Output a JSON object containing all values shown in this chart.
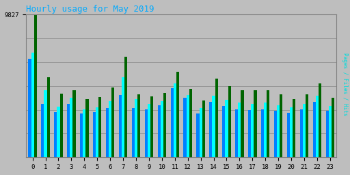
{
  "title": "Hourly usage for May 2019",
  "title_color": "#00AAFF",
  "background_color": "#BEBEBE",
  "plot_background": "#BEBEBE",
  "ymax": 9827,
  "hours": [
    0,
    1,
    2,
    3,
    4,
    5,
    6,
    7,
    8,
    9,
    10,
    11,
    12,
    13,
    14,
    15,
    16,
    17,
    18,
    19,
    20,
    21,
    22,
    23
  ],
  "hits": [
    9827,
    5500,
    4400,
    4600,
    4000,
    4150,
    4800,
    6900,
    4350,
    4200,
    4450,
    5900,
    4700,
    3900,
    5400,
    4900,
    4600,
    4600,
    4600,
    4350,
    4000,
    4350,
    5100,
    4100
  ],
  "files": [
    7200,
    4600,
    3500,
    4100,
    3300,
    3450,
    3850,
    5500,
    4000,
    3700,
    3850,
    5100,
    4300,
    3400,
    4250,
    3950,
    3750,
    3700,
    3750,
    3600,
    3450,
    3700,
    4250,
    3550
  ],
  "pages": [
    6800,
    3700,
    3100,
    3700,
    3000,
    3100,
    3400,
    4300,
    3400,
    3300,
    3600,
    4750,
    4100,
    3000,
    3800,
    3550,
    3300,
    3250,
    3300,
    3200,
    3050,
    3300,
    3800,
    3200
  ],
  "hits_color": "#006400",
  "files_color": "#00FFFF",
  "pages_color": "#0080FF",
  "right_label": "Pages / Files / Hits",
  "right_label_color": "#00DDDD",
  "grid_color": "#909090",
  "bar_width": 0.22,
  "title_fontsize": 9,
  "tick_fontsize": 6.5
}
